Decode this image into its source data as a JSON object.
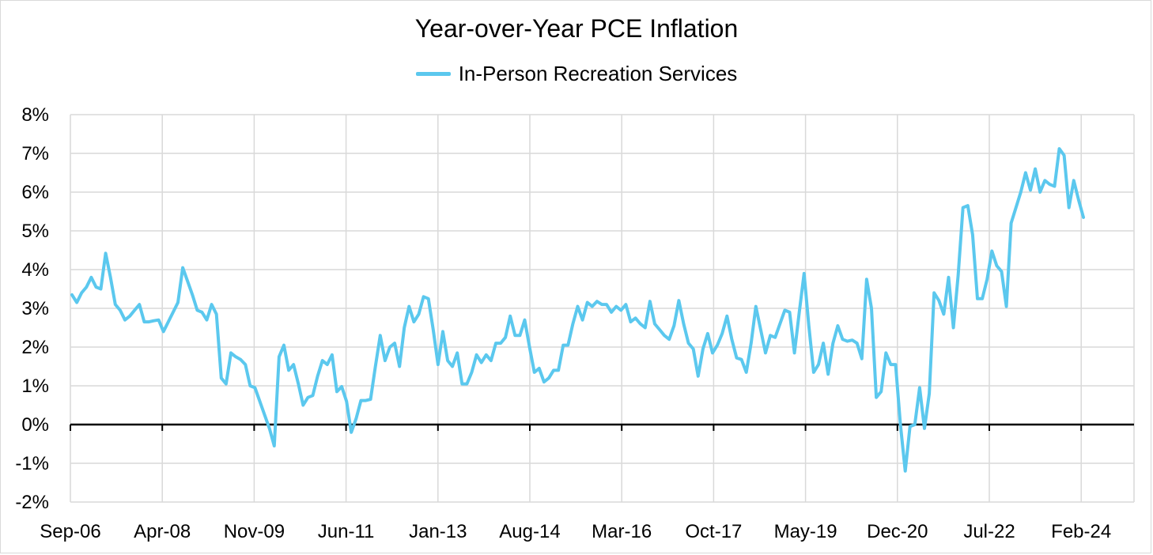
{
  "chart_data": {
    "type": "line",
    "title": "Year-over-Year PCE Inflation",
    "legend_position": "top-center",
    "grid": true,
    "colors": {
      "series": "#5bc8ee",
      "grid": "#d9d9d9",
      "zero_line": "#000000"
    },
    "x_tick_labels": [
      "Sep-06",
      "Apr-08",
      "Nov-09",
      "Jun-11",
      "Jan-13",
      "Aug-14",
      "Mar-16",
      "Oct-17",
      "May-19",
      "Dec-20",
      "Jul-22",
      "Feb-24"
    ],
    "y_tick_labels": [
      "8%",
      "7%",
      "6%",
      "5%",
      "4%",
      "3%",
      "2%",
      "1%",
      "0%",
      "-1%",
      "-2%"
    ],
    "ylim": [
      -2,
      8
    ],
    "x_start": "Sep-06",
    "x_end": "Mar-24",
    "series": [
      {
        "name": "In-Person Recreation Services",
        "values": [
          3.35,
          3.15,
          3.4,
          3.55,
          3.8,
          3.55,
          3.5,
          4.42,
          3.8,
          3.1,
          2.95,
          2.7,
          2.8,
          2.95,
          3.1,
          2.65,
          2.65,
          2.68,
          2.7,
          2.4,
          2.65,
          2.9,
          3.15,
          4.05,
          3.7,
          3.35,
          2.95,
          2.9,
          2.7,
          3.1,
          2.85,
          1.2,
          1.05,
          1.85,
          1.75,
          1.68,
          1.55,
          1.0,
          0.95,
          0.6,
          0.25,
          -0.1,
          -0.55,
          1.75,
          2.05,
          1.4,
          1.55,
          1.05,
          0.5,
          0.7,
          0.75,
          1.25,
          1.65,
          1.55,
          1.8,
          0.85,
          0.98,
          0.6,
          -0.2,
          0.15,
          0.62,
          0.62,
          0.65,
          1.5,
          2.3,
          1.65,
          2.0,
          2.1,
          1.5,
          2.5,
          3.05,
          2.65,
          2.85,
          3.3,
          3.25,
          2.45,
          1.55,
          2.4,
          1.65,
          1.5,
          1.85,
          1.05,
          1.05,
          1.35,
          1.8,
          1.6,
          1.8,
          1.65,
          2.1,
          2.1,
          2.25,
          2.8,
          2.3,
          2.3,
          2.7,
          2.0,
          1.35,
          1.45,
          1.1,
          1.2,
          1.4,
          1.4,
          2.05,
          2.05,
          2.6,
          3.05,
          2.7,
          3.15,
          3.05,
          3.18,
          3.1,
          3.1,
          2.9,
          3.05,
          2.95,
          3.1,
          2.65,
          2.75,
          2.6,
          2.5,
          3.18,
          2.6,
          2.45,
          2.3,
          2.2,
          2.55,
          3.2,
          2.6,
          2.1,
          1.95,
          1.25,
          1.95,
          2.35,
          1.85,
          2.05,
          2.35,
          2.8,
          2.2,
          1.72,
          1.68,
          1.35,
          2.1,
          3.05,
          2.45,
          1.85,
          2.3,
          2.25,
          2.6,
          2.95,
          2.9,
          1.85,
          2.9,
          3.9,
          2.55,
          1.35,
          1.55,
          2.1,
          1.3,
          2.1,
          2.55,
          2.2,
          2.15,
          2.18,
          2.1,
          1.7,
          3.75,
          3.0,
          0.7,
          0.85,
          1.85,
          1.55,
          1.55,
          0.0,
          -1.2,
          -0.05,
          0.0,
          0.95,
          -0.1,
          0.8,
          3.4,
          3.2,
          2.85,
          3.8,
          2.5,
          3.85,
          5.6,
          5.65,
          4.9,
          3.25,
          3.25,
          3.75,
          4.48,
          4.1,
          3.95,
          3.05,
          5.2,
          5.6,
          6.0,
          6.5,
          6.05,
          6.6,
          6.0,
          6.3,
          6.2,
          6.15,
          7.12,
          6.95,
          5.6,
          6.3,
          5.8,
          5.35
        ]
      }
    ]
  }
}
